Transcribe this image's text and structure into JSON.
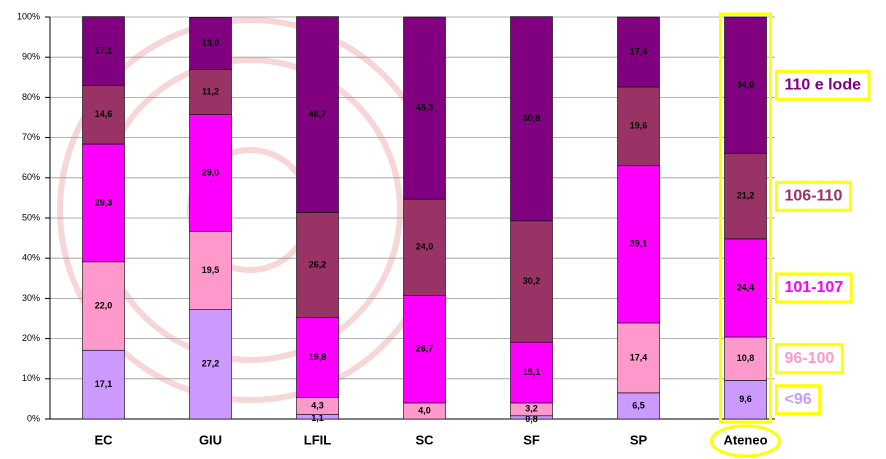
{
  "chart_data": {
    "type": "stacked_bar",
    "categories": [
      "EC",
      "GIU",
      "LFIL",
      "SC",
      "SF",
      "SP",
      "Ateneo"
    ],
    "series": [
      {
        "name": "<96",
        "color": "#cc99ff",
        "values": [
          17.1,
          27.2,
          1.1,
          null,
          0.8,
          6.5,
          9.6
        ],
        "value_labels": [
          "17,1",
          "27,2",
          "1,1",
          null,
          "0,8",
          "6,5",
          "9,6"
        ]
      },
      {
        "name": "96-100",
        "color": "#ff99cc",
        "values": [
          22.0,
          19.5,
          4.3,
          4.0,
          3.2,
          17.4,
          10.8
        ],
        "value_labels": [
          "22,0",
          "19,5",
          "4,3",
          "4,0",
          "3,2",
          "17,4",
          "10,8"
        ]
      },
      {
        "name": "101-107",
        "color": "#ff00ff",
        "values": [
          29.3,
          29.0,
          19.8,
          26.7,
          15.1,
          39.1,
          24.4
        ],
        "value_labels": [
          "29,3",
          "29,0",
          "19,8",
          "26,7",
          "15,1",
          "39,1",
          "24,4"
        ]
      },
      {
        "name": "106-110",
        "color": "#993366",
        "values": [
          14.6,
          11.2,
          26.2,
          24.0,
          30.2,
          19.6,
          21.2
        ],
        "value_labels": [
          "14,6",
          "11,2",
          "26,2",
          "24,0",
          "30,2",
          "19,6",
          "21,2"
        ]
      },
      {
        "name": "110 e lode",
        "color": "#800080",
        "values": [
          17.1,
          13.0,
          48.7,
          45.3,
          50.8,
          17.4,
          34.0
        ],
        "value_labels": [
          "17,1",
          "13,0",
          "48,7",
          "45,3",
          "50,8",
          "17,4",
          "34,0"
        ]
      }
    ],
    "ylim": [
      0,
      100
    ],
    "yticks": [
      {
        "value": 0,
        "label": "0%"
      },
      {
        "value": 10,
        "label": "10%"
      },
      {
        "value": 20,
        "label": "20%"
      },
      {
        "value": 30,
        "label": "30%"
      },
      {
        "value": 40,
        "label": "40%"
      },
      {
        "value": 50,
        "label": "50%"
      },
      {
        "value": 60,
        "label": "60%"
      },
      {
        "value": 70,
        "label": "70%"
      },
      {
        "value": 80,
        "label": "80%"
      },
      {
        "value": 90,
        "label": "90%"
      },
      {
        "value": 100,
        "label": "100%"
      }
    ],
    "grid": true
  }
}
